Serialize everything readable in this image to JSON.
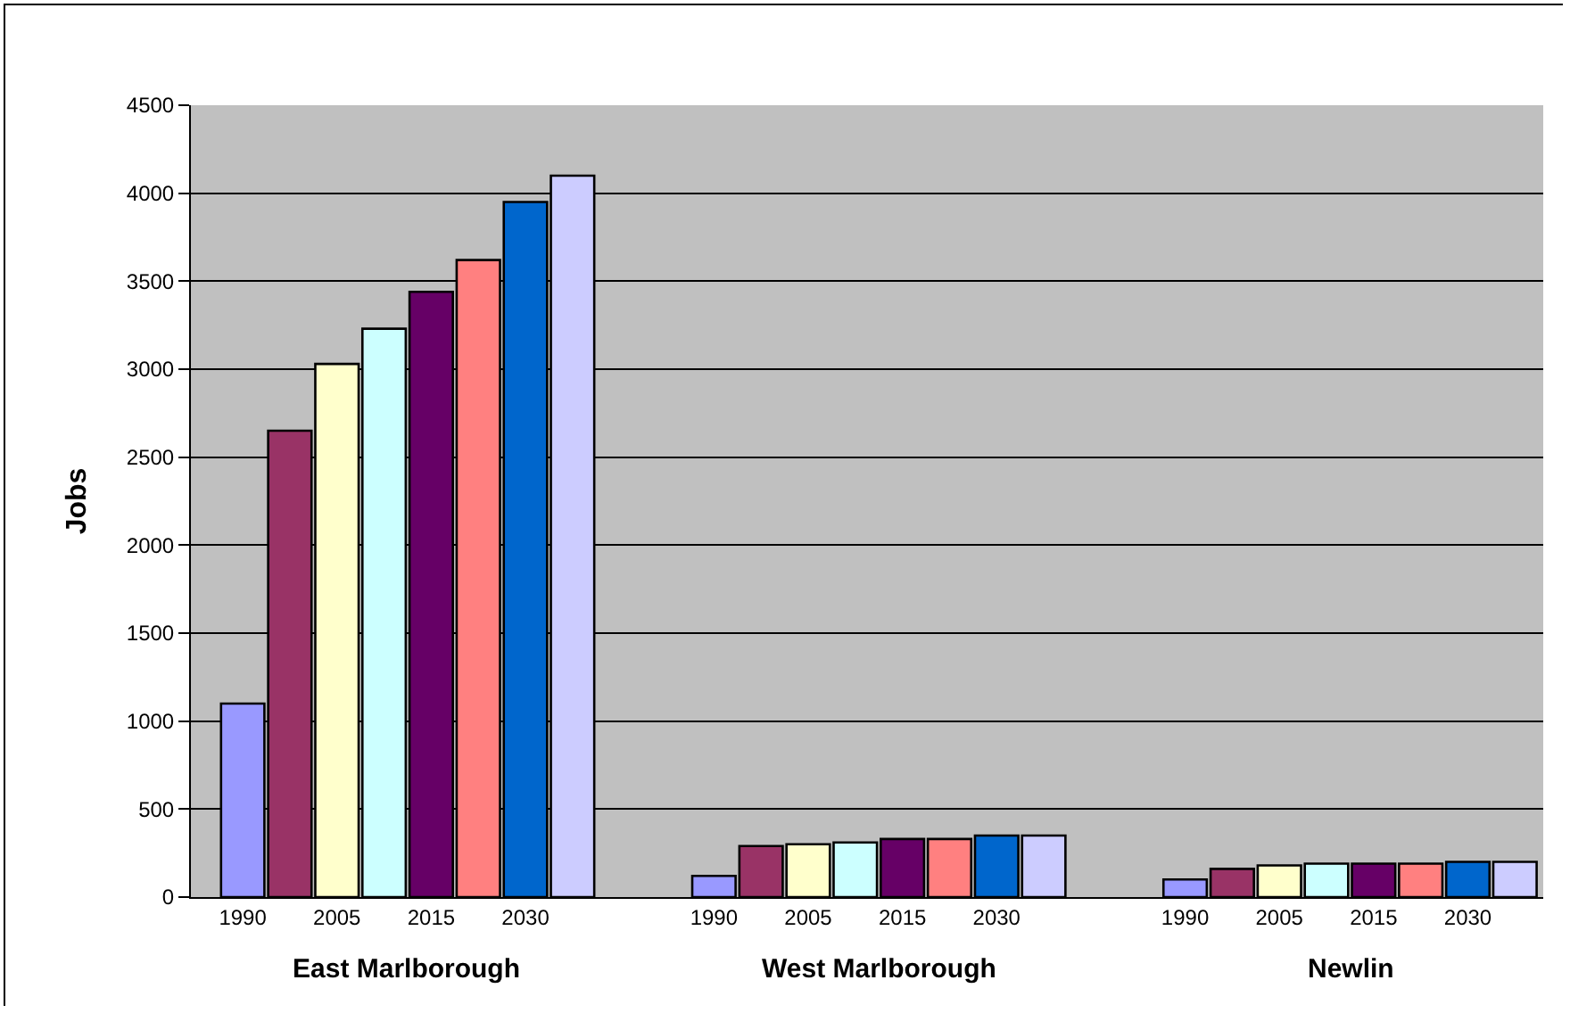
{
  "chart_data": {
    "type": "bar",
    "ylabel": "Jobs",
    "categories": [
      "1990",
      null,
      "2005",
      null,
      "2015",
      null,
      "2030",
      null,
      null,
      null,
      "1990",
      null,
      "2005",
      null,
      "2015",
      null,
      "2030",
      null,
      null,
      null,
      "1990",
      null,
      "2005",
      null,
      "2015",
      null,
      "2030",
      null
    ],
    "values": [
      1100,
      2650,
      3030,
      3230,
      3440,
      3620,
      3950,
      4100,
      null,
      null,
      120,
      290,
      300,
      310,
      330,
      330,
      350,
      350,
      null,
      null,
      100,
      160,
      180,
      190,
      190,
      190,
      200,
      200
    ],
    "colors": [
      "#9999ff",
      "#993366",
      "#ffffcc",
      "#ccffff",
      "#660066",
      "#ff8080",
      "#0066cc",
      "#ccccff",
      null,
      null,
      "#9999ff",
      "#993366",
      "#ffffcc",
      "#ccffff",
      "#660066",
      "#ff8080",
      "#0066cc",
      "#ccccff",
      null,
      null,
      "#9999ff",
      "#993366",
      "#ffffcc",
      "#ccffff",
      "#660066",
      "#ff8080",
      "#0066cc",
      "#ccccff"
    ],
    "annotations": [
      "East Marlborough",
      "West Marlborough",
      "Newlin"
    ],
    "ylim": [
      0,
      4500
    ],
    "yticks": [
      0,
      500,
      1000,
      1500,
      2000,
      2500,
      3000,
      3500,
      4000,
      4500
    ],
    "grid": "y"
  }
}
